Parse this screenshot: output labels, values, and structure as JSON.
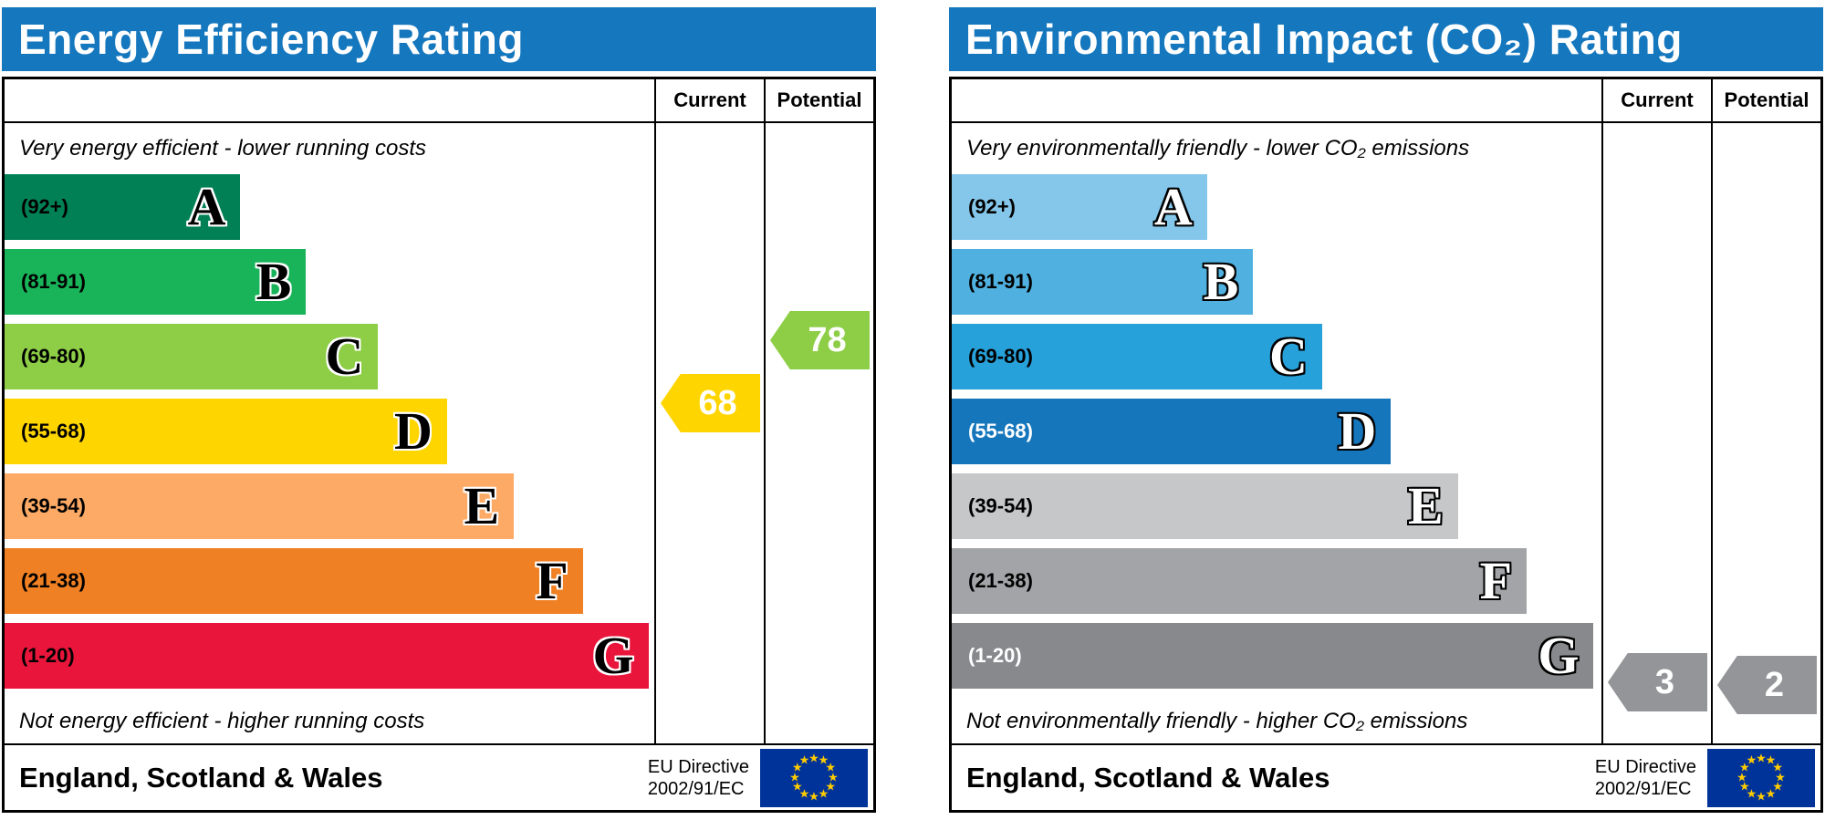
{
  "chart_data": [
    {
      "type": "bar",
      "subtype": "epc-rating-scale",
      "title": "Energy Efficiency Rating",
      "header_color": "#1577bd",
      "columns": {
        "current": "Current",
        "potential": "Potential"
      },
      "top_note": "Very energy efficient - lower running costs",
      "bottom_note": "Not energy efficient - higher running costs",
      "bands": [
        {
          "letter": "A",
          "label": "(92+)",
          "min": 92,
          "max": 100,
          "color": "#008054",
          "label_color": "#000000",
          "width_pct": 36.3
        },
        {
          "letter": "B",
          "label": "(81-91)",
          "min": 81,
          "max": 91,
          "color": "#19b459",
          "label_color": "#000000",
          "width_pct": 46.4
        },
        {
          "letter": "C",
          "label": "(69-80)",
          "min": 69,
          "max": 80,
          "color": "#8dce46",
          "label_color": "#000000",
          "width_pct": 57.5
        },
        {
          "letter": "D",
          "label": "(55-68)",
          "min": 55,
          "max": 68,
          "color": "#ffd500",
          "label_color": "#000000",
          "width_pct": 68.1
        },
        {
          "letter": "E",
          "label": "(39-54)",
          "min": 39,
          "max": 54,
          "color": "#fcaa65",
          "label_color": "#000000",
          "width_pct": 78.4
        },
        {
          "letter": "F",
          "label": "(21-38)",
          "min": 21,
          "max": 38,
          "color": "#ef8023",
          "label_color": "#000000",
          "width_pct": 89.0
        },
        {
          "letter": "G",
          "label": "(1-20)",
          "min": 1,
          "max": 20,
          "color": "#e9153b",
          "label_color": "#000000",
          "width_pct": 99.1
        }
      ],
      "letter_color": "#000000",
      "letter_outline": "#ffffff",
      "current": {
        "value": 68,
        "band": "D",
        "color": "#ffd500",
        "text_color": "#ffffff"
      },
      "potential": {
        "value": 78,
        "band": "C",
        "color": "#8dce46",
        "text_color": "#ffffff"
      },
      "footer": {
        "region": "England, Scotland & Wales",
        "directive_line1": "EU Directive",
        "directive_line2": "2002/91/EC"
      },
      "flag_colors": {
        "background": "#003399",
        "stars": "#ffcc00"
      }
    },
    {
      "type": "bar",
      "subtype": "epc-rating-scale",
      "title": "Environmental Impact (CO₂) Rating",
      "header_color": "#1577bd",
      "columns": {
        "current": "Current",
        "potential": "Potential"
      },
      "top_note": "Very environmentally friendly - lower CO₂ emissions",
      "bottom_note": "Not environmentally friendly - higher CO₂ emissions",
      "bands": [
        {
          "letter": "A",
          "label": "(92+)",
          "min": 92,
          "max": 100,
          "color": "#85c7ea",
          "label_color": "#000000",
          "width_pct": 39.3
        },
        {
          "letter": "B",
          "label": "(81-91)",
          "min": 81,
          "max": 91,
          "color": "#50b1e0",
          "label_color": "#000000",
          "width_pct": 46.4
        },
        {
          "letter": "C",
          "label": "(69-80)",
          "min": 69,
          "max": 80,
          "color": "#27a1da",
          "label_color": "#000000",
          "width_pct": 57.0
        },
        {
          "letter": "D",
          "label": "(55-68)",
          "min": 55,
          "max": 68,
          "color": "#1576bc",
          "label_color": "#ffffff",
          "width_pct": 67.6
        },
        {
          "letter": "E",
          "label": "(39-54)",
          "min": 39,
          "max": 54,
          "color": "#c6c7c9",
          "label_color": "#000000",
          "width_pct": 77.9
        },
        {
          "letter": "F",
          "label": "(21-38)",
          "min": 21,
          "max": 38,
          "color": "#a2a4a7",
          "label_color": "#000000",
          "width_pct": 88.5
        },
        {
          "letter": "G",
          "label": "(1-20)",
          "min": 1,
          "max": 20,
          "color": "#87898c",
          "label_color": "#ffffff",
          "width_pct": 98.8
        }
      ],
      "letter_color": "#ffffff",
      "letter_outline": "#000000",
      "current": {
        "value": 3,
        "band": "G",
        "color": "#939598",
        "text_color": "#ffffff"
      },
      "potential": {
        "value": 2,
        "band": "G",
        "color": "#939598",
        "text_color": "#ffffff"
      },
      "footer": {
        "region": "England, Scotland & Wales",
        "directive_line1": "EU Directive",
        "directive_line2": "2002/91/EC"
      },
      "flag_colors": {
        "background": "#003399",
        "stars": "#ffcc00"
      }
    }
  ]
}
